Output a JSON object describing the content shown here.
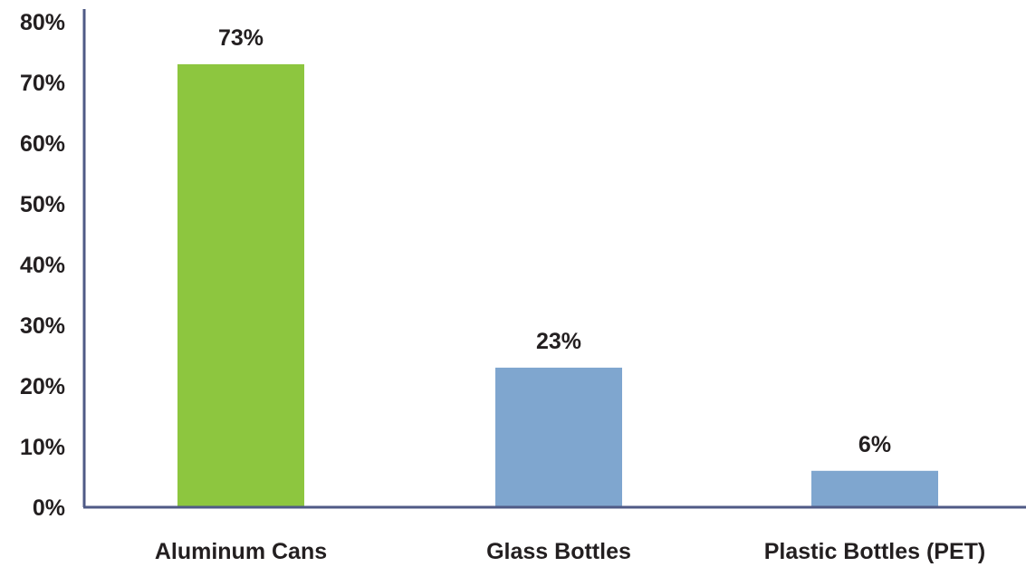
{
  "chart_data": {
    "type": "bar",
    "categories": [
      "Aluminum Cans",
      "Glass Bottles",
      "Plastic Bottles (PET)"
    ],
    "values": [
      73,
      23,
      6
    ],
    "value_labels": [
      "73%",
      "23%",
      "6%"
    ],
    "bar_colors": [
      "#8dc63f",
      "#7fa6cf",
      "#7fa6cf"
    ],
    "axis_color": "#4f5a86",
    "ylim": [
      0,
      80
    ],
    "yticks": [
      0,
      10,
      20,
      30,
      40,
      50,
      60,
      70,
      80
    ],
    "ytick_labels": [
      "0%",
      "10%",
      "20%",
      "30%",
      "40%",
      "50%",
      "60%",
      "70%",
      "80%"
    ],
    "grid": false,
    "legend": "none"
  }
}
